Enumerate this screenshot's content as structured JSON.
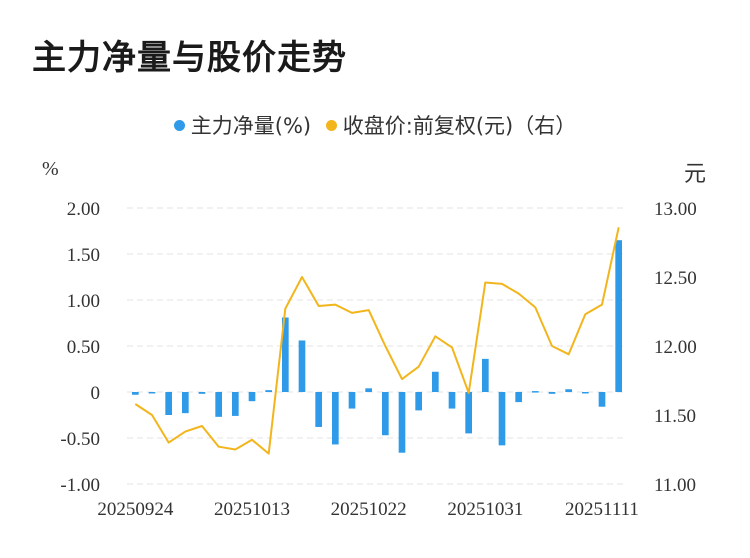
{
  "title": "主力净量与股价走势",
  "legend": {
    "series1": "主力净量(%)",
    "series2": "收盘价:前复权(元)（右）",
    "series1_color": "#2f9be8",
    "series2_color": "#f2b51c"
  },
  "units": {
    "left": "%",
    "right": "元"
  },
  "chart_data": {
    "type": "bar+line",
    "title": "主力净量与股价走势",
    "left_axis": {
      "unit": "%",
      "range": [
        -1.0,
        2.0
      ],
      "ticks": [
        "2.00",
        "1.50",
        "1.00",
        "0.50",
        "0",
        "-0.50",
        "-1.00"
      ]
    },
    "right_axis": {
      "unit": "元",
      "range": [
        11.0,
        13.0
      ],
      "ticks": [
        "13.00",
        "12.50",
        "12.00",
        "11.50",
        "11.00"
      ]
    },
    "x_tick_labels": [
      "20250924",
      "20251013",
      "20251022",
      "20251031",
      "20251111"
    ],
    "x_tick_index": [
      0,
      7,
      14,
      21,
      28
    ],
    "grid": true,
    "legend_position": "top",
    "series": [
      {
        "name": "主力净量(%)",
        "type": "bar",
        "axis": "left",
        "color": "#2f9be8",
        "values": [
          -0.03,
          -0.01,
          -0.25,
          -0.23,
          -0.02,
          -0.27,
          -0.26,
          -0.1,
          0.02,
          0.81,
          0.56,
          -0.38,
          -0.57,
          -0.18,
          0.04,
          -0.47,
          -0.66,
          -0.2,
          0.22,
          -0.18,
          -0.45,
          0.36,
          -0.58,
          -0.11,
          0.01,
          -0.02,
          0.03,
          -0.01,
          -0.16,
          1.65
        ]
      },
      {
        "name": "收盘价:前复权(元)（右）",
        "type": "line",
        "axis": "right",
        "color": "#f2b51c",
        "values": [
          11.58,
          11.5,
          11.3,
          11.38,
          11.42,
          11.27,
          11.25,
          11.32,
          11.22,
          12.27,
          12.5,
          12.29,
          12.3,
          12.24,
          12.26,
          12.0,
          11.76,
          11.85,
          12.07,
          11.99,
          11.66,
          12.46,
          12.45,
          12.38,
          12.28,
          12.0,
          11.94,
          12.23,
          12.3,
          12.86
        ]
      }
    ]
  }
}
